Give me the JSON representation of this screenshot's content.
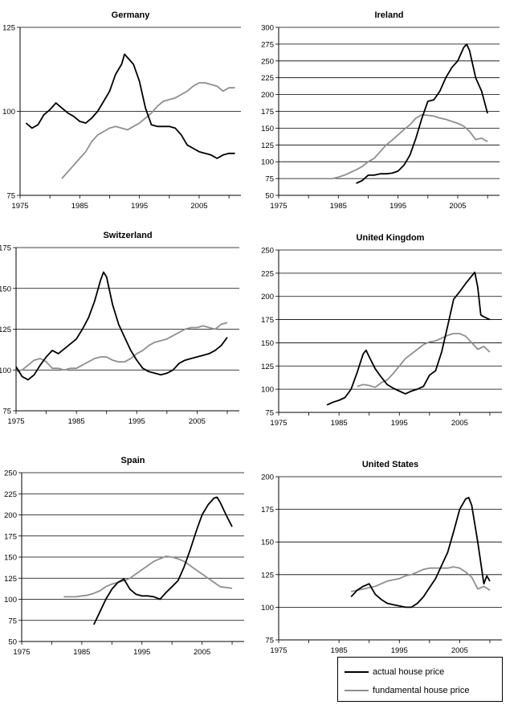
{
  "legend": {
    "actual_label": "actual house price",
    "fundamental_label": "fundamental house price",
    "actual_color": "#000000",
    "fundamental_color": "#8f8f8f"
  },
  "chart_data": [
    {
      "type": "line",
      "title": "Germany",
      "xlim": [
        1975,
        2012
      ],
      "xticks": [
        1975,
        1985,
        1995,
        2005
      ],
      "ylim": [
        75,
        125
      ],
      "yticks": [
        75,
        100,
        125
      ],
      "grid": "horizontal",
      "series": [
        {
          "name": "actual house price",
          "x": [
            1976,
            1977,
            1978,
            1979,
            1980,
            1981,
            1982,
            1983,
            1984,
            1985,
            1986,
            1987,
            1988,
            1989,
            1990,
            1991,
            1992,
            1992.5,
            1993,
            1994,
            1995,
            1996,
            1997,
            1998,
            1999,
            2000,
            2001,
            2002,
            2003,
            2004,
            2005,
            2006,
            2007,
            2008,
            2009,
            2010,
            2011
          ],
          "y": [
            96.5,
            95,
            96,
            99,
            100.5,
            102.5,
            101,
            99.5,
            98.5,
            97,
            96.5,
            98,
            100,
            103,
            106,
            111,
            114,
            117,
            116,
            114,
            109,
            101,
            96,
            95.5,
            95.5,
            95.5,
            95,
            93,
            90,
            89,
            88,
            87.5,
            87,
            86,
            87,
            87.5,
            87.5
          ]
        },
        {
          "name": "fundamental house price",
          "x": [
            1982,
            1983,
            1984,
            1985,
            1986,
            1987,
            1988,
            1989,
            1990,
            1991,
            1992,
            1993,
            1994,
            1995,
            1996,
            1997,
            1998,
            1999,
            2000,
            2001,
            2002,
            2003,
            2004,
            2005,
            2006,
            2007,
            2008,
            2009,
            2010,
            2011
          ],
          "y": [
            80,
            82,
            84,
            86,
            88,
            91,
            93,
            94,
            95,
            95.5,
            95,
            94.5,
            95.5,
            96.5,
            98,
            99.5,
            101.5,
            103,
            103.5,
            104,
            105,
            106,
            107.5,
            108.5,
            108.5,
            108,
            107.5,
            106,
            107,
            107
          ]
        }
      ]
    },
    {
      "type": "line",
      "title": "Ireland",
      "xlim": [
        1975,
        2012
      ],
      "xticks": [
        1975,
        1985,
        1995,
        2005
      ],
      "ylim": [
        50,
        300
      ],
      "yticks": [
        50,
        75,
        100,
        125,
        150,
        175,
        200,
        225,
        250,
        275,
        300
      ],
      "grid": "horizontal",
      "series": [
        {
          "name": "actual house price",
          "x": [
            1988,
            1989,
            1990,
            1991,
            1992,
            1993,
            1994,
            1995,
            1996,
            1997,
            1998,
            1999,
            2000,
            2001,
            2002,
            2003,
            2004,
            2005,
            2006,
            2006.5,
            2007,
            2008,
            2009,
            2010
          ],
          "y": [
            68,
            72,
            80,
            80,
            82,
            82,
            83,
            86,
            95,
            110,
            135,
            165,
            190,
            192,
            205,
            225,
            240,
            250,
            270,
            275,
            265,
            225,
            205,
            172
          ]
        },
        {
          "name": "fundamental house price",
          "x": [
            1984,
            1985,
            1986,
            1987,
            1988,
            1989,
            1990,
            1991,
            1992,
            1993,
            1994,
            1995,
            1996,
            1997,
            1998,
            1999,
            2000,
            2001,
            2002,
            2003,
            2004,
            2005,
            2006,
            2007,
            2008,
            2009,
            2010
          ],
          "y": [
            75,
            77,
            80,
            84,
            88,
            93,
            100,
            105,
            115,
            125,
            132,
            140,
            148,
            155,
            165,
            170,
            169,
            168,
            165,
            163,
            160,
            157,
            153,
            145,
            133,
            135,
            130
          ]
        }
      ]
    },
    {
      "type": "line",
      "title": "Switzerland",
      "xlim": [
        1975,
        2012
      ],
      "xticks": [
        1975,
        1985,
        1995,
        2005
      ],
      "ylim": [
        75,
        175
      ],
      "yticks": [
        75,
        100,
        125,
        150,
        175
      ],
      "grid": "horizontal",
      "series": [
        {
          "name": "actual house price",
          "x": [
            1975,
            1976,
            1977,
            1978,
            1979,
            1980,
            1981,
            1982,
            1983,
            1984,
            1985,
            1986,
            1987,
            1988,
            1989,
            1989.5,
            1990,
            1991,
            1992,
            1993,
            1994,
            1995,
            1996,
            1997,
            1998,
            1999,
            2000,
            2001,
            2002,
            2003,
            2004,
            2005,
            2006,
            2007,
            2008,
            2009,
            2010
          ],
          "y": [
            102,
            96,
            94,
            97,
            103,
            108,
            112,
            110,
            113,
            116,
            119,
            125,
            132,
            142,
            155,
            160,
            157,
            140,
            128,
            120,
            112,
            106,
            101,
            99,
            98,
            97,
            98,
            100,
            104,
            106,
            107,
            108,
            109,
            110,
            112,
            115,
            120
          ]
        },
        {
          "name": "fundamental house price",
          "x": [
            1975,
            1976,
            1977,
            1978,
            1979,
            1980,
            1981,
            1982,
            1983,
            1984,
            1985,
            1986,
            1987,
            1988,
            1989,
            1990,
            1991,
            1992,
            1993,
            1994,
            1995,
            1996,
            1997,
            1998,
            1999,
            2000,
            2001,
            2002,
            2003,
            2004,
            2005,
            2006,
            2007,
            2008,
            2009,
            2010
          ],
          "y": [
            99,
            100,
            103,
            106,
            107,
            105,
            101,
            101,
            100,
            101,
            101,
            103,
            105,
            107,
            108,
            108,
            106,
            105,
            105,
            107,
            110,
            112,
            115,
            117,
            118,
            119,
            121,
            123,
            125,
            126,
            126,
            127,
            126,
            125,
            128,
            129
          ]
        }
      ]
    },
    {
      "type": "line",
      "title": "United Kingdom",
      "xlim": [
        1975,
        2012
      ],
      "xticks": [
        1975,
        1985,
        1995,
        2005
      ],
      "ylim": [
        75,
        250
      ],
      "yticks": [
        75,
        100,
        125,
        150,
        175,
        200,
        225,
        250
      ],
      "grid": "horizontal",
      "series": [
        {
          "name": "actual house price",
          "x": [
            1983,
            1984,
            1985,
            1986,
            1987,
            1988,
            1989,
            1989.5,
            1990,
            1991,
            1992,
            1993,
            1994,
            1995,
            1996,
            1997,
            1998,
            1999,
            2000,
            2001,
            2002,
            2003,
            2004,
            2005,
            2006,
            2007,
            2007.5,
            2008,
            2008.5,
            2009,
            2010
          ],
          "y": [
            83,
            86,
            88,
            91,
            100,
            118,
            138,
            142,
            135,
            122,
            113,
            105,
            101,
            98,
            95,
            98,
            100,
            103,
            115,
            120,
            140,
            168,
            197,
            205,
            214,
            222,
            226,
            210,
            180,
            178,
            175
          ]
        },
        {
          "name": "fundamental house price",
          "x": [
            1988,
            1989,
            1990,
            1991,
            1992,
            1993,
            1994,
            1995,
            1996,
            1997,
            1998,
            1999,
            2000,
            2001,
            2002,
            2003,
            2004,
            2005,
            2006,
            2007,
            2008,
            2009,
            2010
          ],
          "y": [
            103,
            105,
            104,
            102,
            107,
            110,
            117,
            125,
            133,
            138,
            143,
            148,
            151,
            152,
            155,
            158,
            160,
            160,
            157,
            150,
            143,
            146,
            140
          ]
        }
      ]
    },
    {
      "type": "line",
      "title": "Spain",
      "xlim": [
        1975,
        2012
      ],
      "xticks": [
        1975,
        1985,
        1995,
        2005
      ],
      "ylim": [
        50,
        250
      ],
      "yticks": [
        50,
        75,
        100,
        125,
        150,
        175,
        200,
        225,
        250
      ],
      "grid": "horizontal",
      "series": [
        {
          "name": "actual house price",
          "x": [
            1987,
            1988,
            1989,
            1990,
            1991,
            1992,
            1993,
            1994,
            1995,
            1996,
            1997,
            1998,
            1999,
            2000,
            2001,
            2002,
            2003,
            2004,
            2005,
            2006,
            2007,
            2007.5,
            2008,
            2009,
            2010
          ],
          "y": [
            70,
            85,
            100,
            112,
            120,
            124,
            112,
            106,
            104,
            104,
            103,
            100,
            108,
            115,
            122,
            138,
            158,
            180,
            200,
            212,
            220,
            221,
            215,
            200,
            186
          ]
        },
        {
          "name": "fundamental house price",
          "x": [
            1982,
            1983,
            1984,
            1985,
            1986,
            1987,
            1988,
            1989,
            1990,
            1991,
            1992,
            1993,
            1994,
            1995,
            1996,
            1997,
            1998,
            1999,
            2000,
            2001,
            2002,
            2003,
            2004,
            2005,
            2006,
            2007,
            2008,
            2009,
            2010
          ],
          "y": [
            103,
            103,
            103,
            104,
            105,
            107,
            110,
            115,
            118,
            120,
            122,
            125,
            130,
            135,
            140,
            145,
            148,
            151,
            150,
            148,
            145,
            140,
            135,
            130,
            125,
            120,
            115,
            114,
            113
          ]
        }
      ]
    },
    {
      "type": "line",
      "title": "United States",
      "xlim": [
        1975,
        2012
      ],
      "xticks": [
        1975,
        1985,
        1995,
        2005
      ],
      "ylim": [
        75,
        200
      ],
      "yticks": [
        75,
        100,
        125,
        150,
        175,
        200
      ],
      "grid": "horizontal",
      "series": [
        {
          "name": "actual house price",
          "x": [
            1987,
            1988,
            1989,
            1990,
            1991,
            1992,
            1993,
            1994,
            1995,
            1996,
            1997,
            1998,
            1999,
            2000,
            2001,
            2002,
            2003,
            2004,
            2005,
            2006,
            2006.5,
            2007,
            2008,
            2009,
            2009.5,
            2010
          ],
          "y": [
            108,
            113,
            116,
            118,
            110,
            106,
            103,
            102,
            101,
            100,
            100,
            103,
            108,
            115,
            122,
            132,
            142,
            158,
            175,
            183,
            184,
            178,
            150,
            118,
            124,
            120
          ]
        },
        {
          "name": "fundamental house price",
          "x": [
            1987,
            1988,
            1989,
            1990,
            1991,
            1992,
            1993,
            1994,
            1995,
            1996,
            1997,
            1998,
            1999,
            2000,
            2001,
            2002,
            2003,
            2004,
            2005,
            2006,
            2007,
            2008,
            2009,
            2010
          ],
          "y": [
            112,
            113,
            114,
            115,
            116,
            118,
            120,
            121,
            122,
            124,
            125,
            127,
            129,
            130,
            130,
            130,
            130,
            131,
            130,
            127,
            123,
            114,
            116,
            113
          ]
        }
      ]
    }
  ]
}
